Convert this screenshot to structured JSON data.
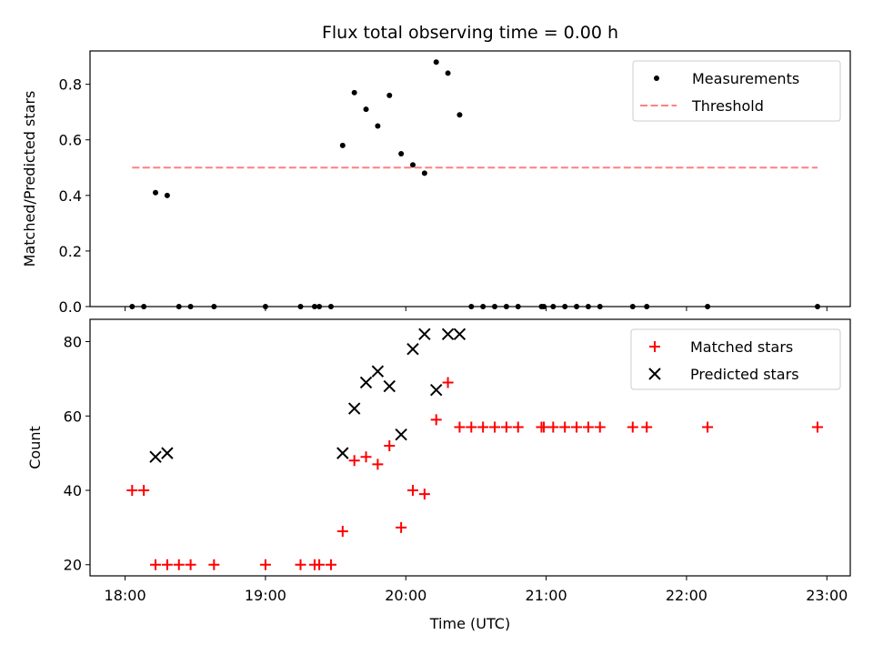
{
  "title": "Flux total observing time = 0.00 h",
  "colors": {
    "marker": "#000000",
    "threshold": "#ff8080",
    "matched": "#ff0000",
    "predicted": "#000000",
    "frame": "#000000",
    "legend_border": "#cccccc"
  },
  "chart_data": [
    {
      "type": "scatter",
      "panel": "top",
      "title": "Flux total observing time = 0.00 h",
      "ylabel": "Matched/Predicted stars",
      "xlabel": "",
      "xlim": [
        "17:45",
        "23:10"
      ],
      "ylim": [
        0,
        0.92
      ],
      "yticks": [
        0.0,
        0.2,
        0.4,
        0.6,
        0.8
      ],
      "ytick_labels": [
        "0.0",
        "0.2",
        "0.4",
        "0.6",
        "0.8"
      ],
      "legend_position": "upper right",
      "series": [
        {
          "name": "Measurements",
          "marker": "dot",
          "points": [
            [
              "18:03",
              0.0
            ],
            [
              "18:08",
              0.0
            ],
            [
              "18:13",
              0.41
            ],
            [
              "18:18",
              0.4
            ],
            [
              "18:23",
              0.0
            ],
            [
              "18:28",
              0.0
            ],
            [
              "18:38",
              0.0
            ],
            [
              "19:00",
              0.0
            ],
            [
              "19:15",
              0.0
            ],
            [
              "19:21",
              0.0
            ],
            [
              "19:23",
              0.0
            ],
            [
              "19:28",
              0.0
            ],
            [
              "19:33",
              0.58
            ],
            [
              "19:38",
              0.77
            ],
            [
              "19:43",
              0.71
            ],
            [
              "19:48",
              0.65
            ],
            [
              "19:53",
              0.76
            ],
            [
              "19:58",
              0.55
            ],
            [
              "20:03",
              0.51
            ],
            [
              "20:08",
              0.48
            ],
            [
              "20:13",
              0.88
            ],
            [
              "20:18",
              0.84
            ],
            [
              "20:23",
              0.69
            ],
            [
              "20:28",
              0.0
            ],
            [
              "20:33",
              0.0
            ],
            [
              "20:38",
              0.0
            ],
            [
              "20:43",
              0.0
            ],
            [
              "20:48",
              0.0
            ],
            [
              "20:58",
              0.0
            ],
            [
              "20:59",
              0.0
            ],
            [
              "21:03",
              0.0
            ],
            [
              "21:08",
              0.0
            ],
            [
              "21:13",
              0.0
            ],
            [
              "21:18",
              0.0
            ],
            [
              "21:23",
              0.0
            ],
            [
              "21:37",
              0.0
            ],
            [
              "21:43",
              0.0
            ],
            [
              "22:09",
              0.0
            ],
            [
              "22:56",
              0.0
            ]
          ]
        },
        {
          "name": "Threshold",
          "marker": "dashed-line",
          "points": [
            [
              "18:03",
              0.5
            ],
            [
              "22:56",
              0.5
            ]
          ]
        }
      ]
    },
    {
      "type": "scatter",
      "panel": "bottom",
      "xlabel": "Time (UTC)",
      "ylabel": "Count",
      "xlim": [
        "17:45",
        "23:10"
      ],
      "ylim": [
        17,
        86
      ],
      "xticks": [
        "18:00",
        "19:00",
        "20:00",
        "21:00",
        "22:00",
        "23:00"
      ],
      "xtick_labels": [
        "18:00",
        "19:00",
        "20:00",
        "21:00",
        "22:00",
        "23:00"
      ],
      "yticks": [
        20,
        40,
        60,
        80
      ],
      "ytick_labels": [
        "20",
        "40",
        "60",
        "80"
      ],
      "legend_position": "upper right",
      "series": [
        {
          "name": "Matched stars",
          "marker": "plus",
          "points": [
            [
              "18:03",
              40
            ],
            [
              "18:08",
              40
            ],
            [
              "18:13",
              20
            ],
            [
              "18:18",
              20
            ],
            [
              "18:23",
              20
            ],
            [
              "18:28",
              20
            ],
            [
              "18:38",
              20
            ],
            [
              "19:00",
              20
            ],
            [
              "19:15",
              20
            ],
            [
              "19:21",
              20
            ],
            [
              "19:23",
              20
            ],
            [
              "19:28",
              20
            ],
            [
              "19:33",
              29
            ],
            [
              "19:38",
              48
            ],
            [
              "19:43",
              49
            ],
            [
              "19:48",
              47
            ],
            [
              "19:53",
              52
            ],
            [
              "19:58",
              30
            ],
            [
              "20:03",
              40
            ],
            [
              "20:08",
              39
            ],
            [
              "20:13",
              59
            ],
            [
              "20:18",
              69
            ],
            [
              "20:23",
              57
            ],
            [
              "20:28",
              57
            ],
            [
              "20:33",
              57
            ],
            [
              "20:38",
              57
            ],
            [
              "20:43",
              57
            ],
            [
              "20:48",
              57
            ],
            [
              "20:58",
              57
            ],
            [
              "20:59",
              57
            ],
            [
              "21:03",
              57
            ],
            [
              "21:08",
              57
            ],
            [
              "21:13",
              57
            ],
            [
              "21:18",
              57
            ],
            [
              "21:23",
              57
            ],
            [
              "21:37",
              57
            ],
            [
              "21:43",
              57
            ],
            [
              "22:09",
              57
            ],
            [
              "22:56",
              57
            ]
          ]
        },
        {
          "name": "Predicted stars",
          "marker": "x",
          "points": [
            [
              "18:13",
              49
            ],
            [
              "18:18",
              50
            ],
            [
              "19:33",
              50
            ],
            [
              "19:38",
              62
            ],
            [
              "19:43",
              69
            ],
            [
              "19:48",
              72
            ],
            [
              "19:53",
              68
            ],
            [
              "19:58",
              55
            ],
            [
              "20:03",
              78
            ],
            [
              "20:08",
              82
            ],
            [
              "20:13",
              67
            ],
            [
              "20:18",
              82
            ],
            [
              "20:23",
              82
            ]
          ]
        }
      ]
    }
  ]
}
